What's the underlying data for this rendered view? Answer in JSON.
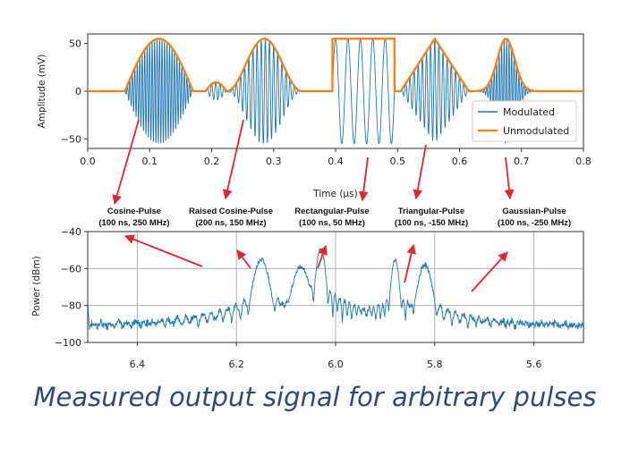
{
  "caption": "Measured output signal for arbitrary pulses",
  "colors": {
    "modulated": "#1f77b4",
    "unmodulated": "#ff7f0e",
    "arrow": "#e8232c",
    "grid": "#b0b0b0"
  },
  "chart_data": [
    {
      "type": "line",
      "xlabel": "Time (µs)",
      "ylabel": "Amplitude (mV)",
      "xlim": [
        0.0,
        0.8
      ],
      "ylim": [
        -60,
        60
      ],
      "xticks": [
        "0.0",
        "0.1",
        "0.2",
        "0.3",
        "0.4",
        "0.5",
        "0.6",
        "0.7",
        "0.8"
      ],
      "yticks": [
        "50",
        "0",
        "−50"
      ],
      "grid": false,
      "legend": "lower-right",
      "series": [
        {
          "name": "Modulated"
        },
        {
          "name": "Unmodulated"
        }
      ],
      "pulses": [
        {
          "shape": "cosine",
          "start": 0.06,
          "end": 0.17,
          "amplitude": 55
        },
        {
          "shape": "raised-cosine",
          "start": 0.19,
          "end": 0.38,
          "amplitude": 55
        },
        {
          "shape": "rectangular",
          "start": 0.395,
          "end": 0.495,
          "amplitude": 55
        },
        {
          "shape": "triangular",
          "start": 0.505,
          "end": 0.615,
          "amplitude": 55
        },
        {
          "shape": "gaussian",
          "start": 0.625,
          "end": 0.725,
          "amplitude": 55
        }
      ]
    },
    {
      "type": "line",
      "xlabel": "",
      "ylabel": "Power (dBm)",
      "xlim": [
        6.5,
        5.5
      ],
      "ylim": [
        -100,
        -40
      ],
      "xticks": [
        "6.4",
        "6.2",
        "6.0",
        "5.8",
        "5.6"
      ],
      "yticks": [
        "−40",
        "−60",
        "−80",
        "−100"
      ],
      "grid": true,
      "peaks": [
        {
          "x": 6.15,
          "y": -55,
          "width": 0.014
        },
        {
          "x": 6.07,
          "y": -59,
          "width": 0.016
        },
        {
          "x": 6.03,
          "y": -49,
          "width": 0.008
        },
        {
          "x": 5.88,
          "y": -55,
          "width": 0.007
        },
        {
          "x": 5.82,
          "y": -58,
          "width": 0.013
        }
      ]
    }
  ],
  "annotations": [
    {
      "title": "Cosine-Pulse",
      "params": "(100 ns, 250 MHz)"
    },
    {
      "title": "Raised Cosine-Pulse",
      "params": "(200 ns, 150 MHz)"
    },
    {
      "title": "Rectangular-Pulse",
      "params": "(100 ns, 50 MHz)"
    },
    {
      "title": "Triangular-Pulse",
      "params": "(100 ns, -150 MHz)"
    },
    {
      "title": "Gaussian-Pulse",
      "params": "(100 ns, -250 MHz)"
    }
  ]
}
